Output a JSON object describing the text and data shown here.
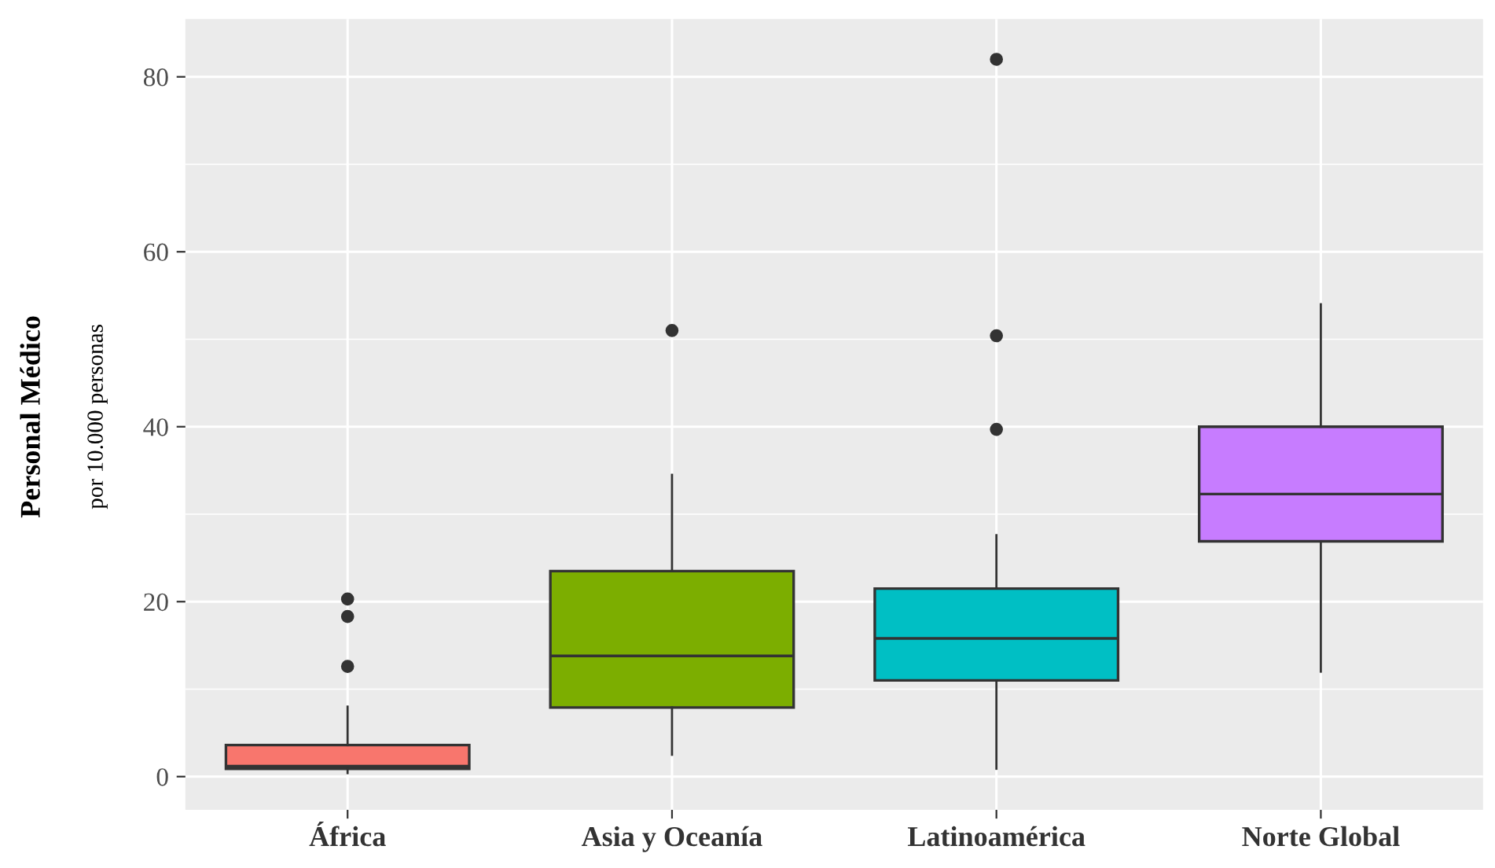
{
  "chart_data": {
    "type": "box",
    "ylabel": "Personal Médico\npor 10.000 personas",
    "categories": [
      "África",
      "Asia y Oceanía",
      "Latinoamérica",
      "Norte Global"
    ],
    "colors": [
      "#f8766d",
      "#7cae00",
      "#00bfc4",
      "#c77cff"
    ],
    "boxes": [
      {
        "low": 0.4,
        "q1": 0.9,
        "median": 1.2,
        "q3": 3.6,
        "high": 8.0,
        "outliers": [
          12.6,
          18.3,
          20.3
        ]
      },
      {
        "low": 2.5,
        "q1": 7.9,
        "median": 13.8,
        "q3": 23.5,
        "high": 34.5,
        "outliers": [
          51
        ]
      },
      {
        "low": 0.9,
        "q1": 11.0,
        "median": 15.8,
        "q3": 21.5,
        "high": 27.6,
        "outliers": [
          39.7,
          50.4,
          82
        ]
      },
      {
        "low": 12,
        "q1": 26.9,
        "median": 32.3,
        "q3": 40.0,
        "high": 54
      }
    ],
    "ylim": [
      -3.8,
      86.6
    ],
    "yticks": [
      0,
      20,
      40,
      60,
      80
    ],
    "grid": true
  }
}
